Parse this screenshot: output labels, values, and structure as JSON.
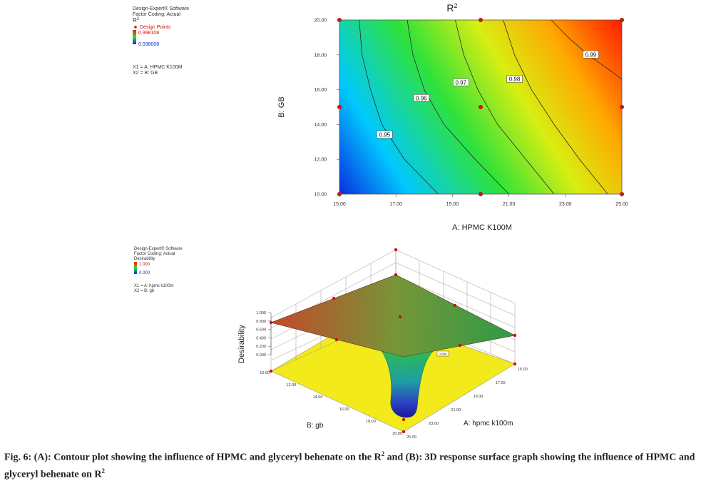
{
  "legend_top": {
    "software": "Design-Expert® Software",
    "coding": "Factor Coding: Actual",
    "response": "R2",
    "design_points": "Design Points",
    "high": "0.998108",
    "low": "0.938008",
    "x1": "X1 = A: HPMC K100M",
    "x2": "X2 = B: GB"
  },
  "legend_bottom": {
    "software": "Design-Expert® Software",
    "coding": "Factor Coding: Actual",
    "response": "Desirability",
    "high": "1.000",
    "low": "0.000",
    "x1": "X1 = A: hpmc k100m",
    "x2": "X2 = B: gb"
  },
  "caption": {
    "part1": "Fig. 6: (A): Contour plot showing the influence of HPMC and glyceryl behenate on the R",
    "part2": " and (B): 3D response surface graph showing the influence of HPMC and glyceryl behenate on R",
    "sup": "2"
  },
  "chart_data": [
    {
      "type": "contour",
      "title": "R2",
      "xlabel": "A: HPMC K100M",
      "ylabel": "B: GB",
      "xlim": [
        15,
        25
      ],
      "ylim": [
        10,
        20
      ],
      "x_ticks": [
        "15.00",
        "17.00",
        "19.00",
        "21.00",
        "23.00",
        "25.00"
      ],
      "y_ticks": [
        "10.00",
        "12.00",
        "14.00",
        "16.00",
        "18.00",
        "20.00"
      ],
      "color_range": [
        0.938008,
        0.998108
      ],
      "contours": [
        {
          "level": "0.95",
          "points": [
            [
              15.7,
              20.0
            ],
            [
              15.8,
              18.0
            ],
            [
              16.1,
              16.0
            ],
            [
              16.5,
              14.0
            ],
            [
              17.3,
              12.0
            ],
            [
              18.5,
              10.0
            ]
          ]
        },
        {
          "level": "0.96",
          "points": [
            [
              17.4,
              20.0
            ],
            [
              17.6,
              18.0
            ],
            [
              18.0,
              16.0
            ],
            [
              18.7,
              14.0
            ],
            [
              19.8,
              12.0
            ],
            [
              21.0,
              10.0
            ]
          ]
        },
        {
          "level": "0.97",
          "points": [
            [
              19.1,
              20.0
            ],
            [
              19.4,
              18.0
            ],
            [
              19.9,
              16.0
            ],
            [
              20.6,
              14.0
            ],
            [
              21.6,
              12.0
            ],
            [
              22.6,
              10.0
            ]
          ]
        },
        {
          "level": "0.98",
          "points": [
            [
              20.8,
              20.0
            ],
            [
              21.2,
              18.0
            ],
            [
              21.8,
              16.0
            ],
            [
              22.6,
              14.0
            ],
            [
              23.5,
              12.0
            ],
            [
              24.5,
              10.0
            ]
          ]
        },
        {
          "level": "0.99",
          "points": [
            [
              22.5,
              20.0
            ],
            [
              23.1,
              19.0
            ],
            [
              23.8,
              18.0
            ],
            [
              24.5,
              17.2
            ],
            [
              25.0,
              16.6
            ]
          ]
        }
      ],
      "label_positions": [
        [
          16.6,
          13.4
        ],
        [
          17.9,
          15.5
        ],
        [
          19.3,
          16.4
        ],
        [
          21.2,
          16.6
        ],
        [
          23.9,
          18.0
        ]
      ],
      "design_points": [
        [
          15,
          20
        ],
        [
          20,
          20
        ],
        [
          25,
          20
        ],
        [
          15,
          15
        ],
        [
          20,
          15
        ],
        [
          25,
          15
        ],
        [
          15,
          10
        ],
        [
          20,
          10
        ],
        [
          25,
          10
        ]
      ]
    },
    {
      "type": "surface3d",
      "zlabel": "Desirability",
      "xlabel": "A: hpmc k100m",
      "ylabel": "B: gb",
      "a_ticks": [
        "15.00",
        "17.00",
        "19.00",
        "21.00",
        "23.00",
        "25.00"
      ],
      "b_ticks": [
        "10.00",
        "12.00",
        "14.00",
        "16.00",
        "18.00",
        "20.00"
      ],
      "z_ticks": [
        "0.000",
        "0.200",
        "0.400",
        "0.600",
        "0.800",
        "1.000"
      ],
      "alim": [
        15,
        25
      ],
      "blim": [
        10,
        20
      ],
      "zlim": [
        0,
        1
      ],
      "optimum_label": "0.800",
      "description": "Desirability is about 0.8 over most of the domain and drops toward 0 as B (gb) approaches 20 and A (hpmc k100m) approaches 25."
    }
  ]
}
